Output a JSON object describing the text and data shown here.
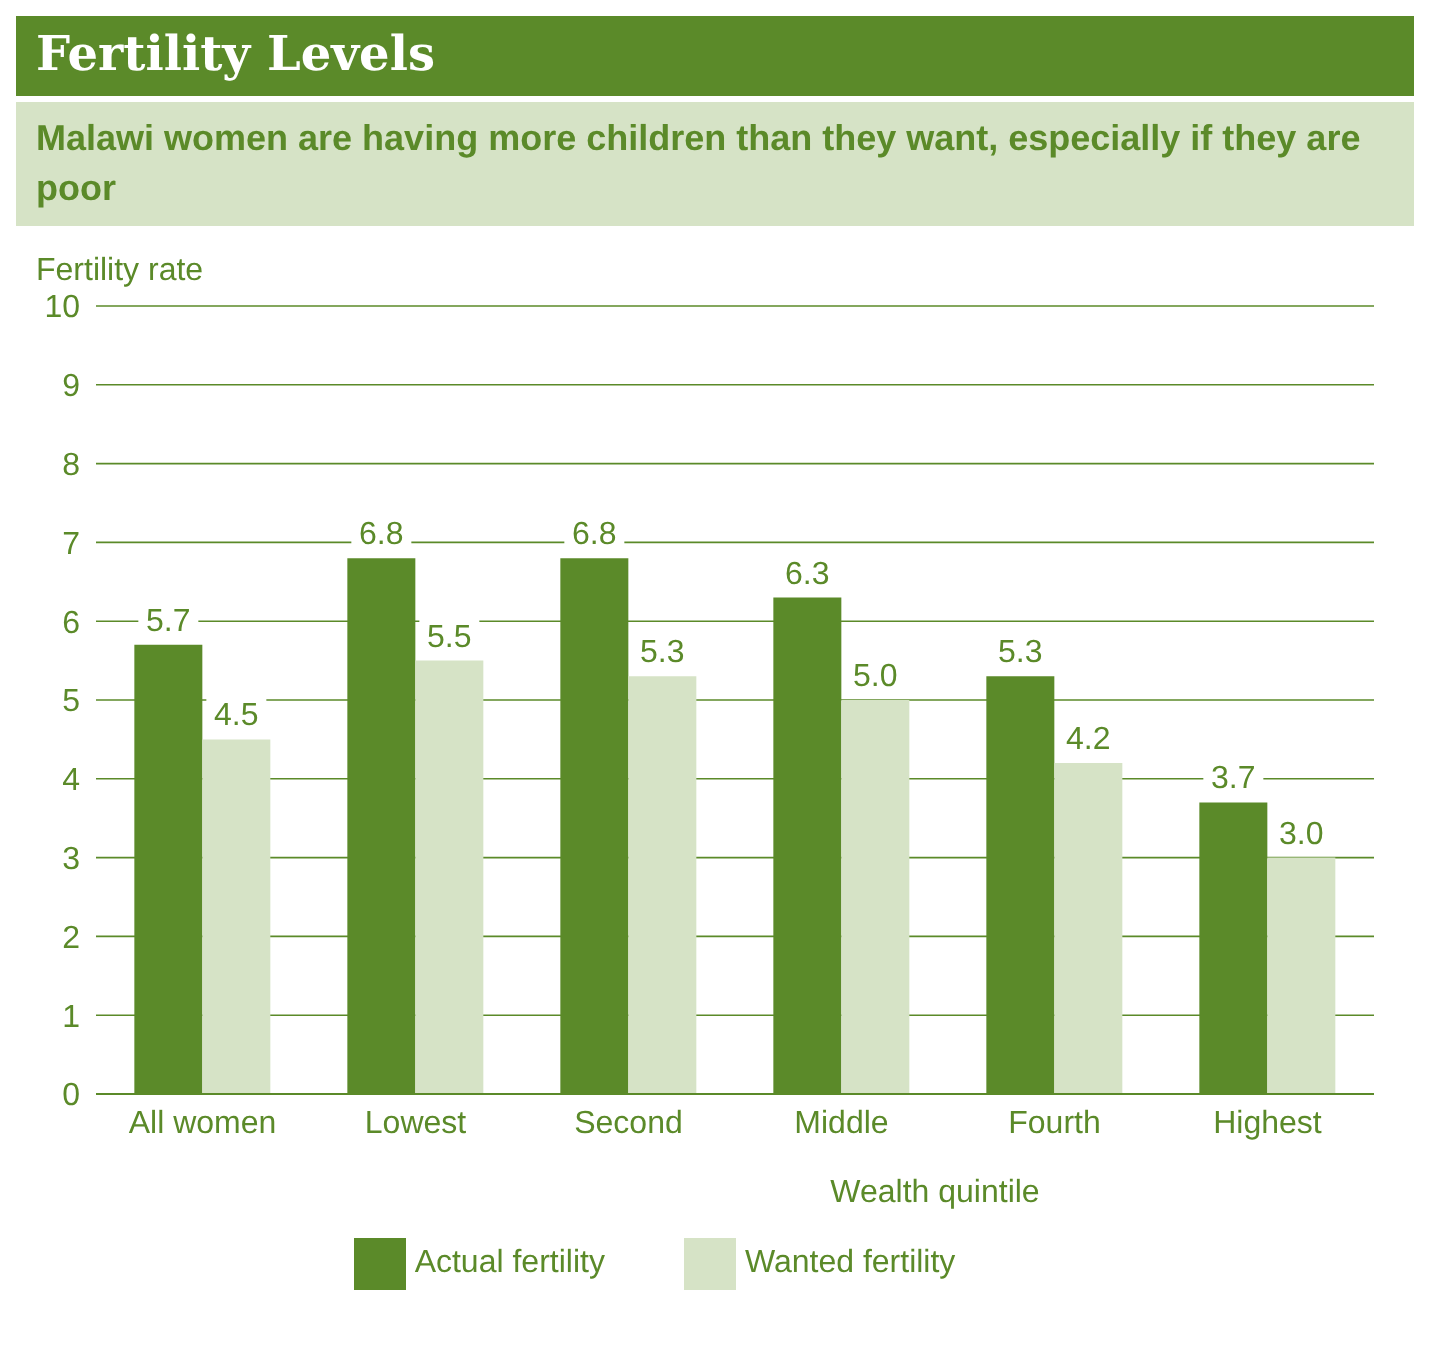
{
  "chart_data": {
    "type": "bar",
    "title": "Fertility Levels",
    "subtitle": "Malawi women are having more children than they want, especially if they are poor",
    "ylabel": "Fertility rate",
    "xlabel": "Wealth quintile",
    "categories": [
      "All women",
      "Lowest",
      "Second",
      "Middle",
      "Fourth",
      "Highest"
    ],
    "series": [
      {
        "name": "Actual fertility",
        "color": "#5b8a29",
        "values": [
          5.7,
          6.8,
          6.8,
          6.3,
          5.3,
          3.7
        ],
        "value_labels": [
          "5.7",
          "6.8",
          "6.8",
          "6.3",
          "5.3",
          "3.7"
        ]
      },
      {
        "name": "Wanted fertility",
        "color": "#d6e3c6",
        "values": [
          4.5,
          5.5,
          5.3,
          5.0,
          4.2,
          3.0
        ],
        "value_labels": [
          "4.5",
          "5.5",
          "5.3",
          "5.0",
          "4.2",
          "3.0"
        ]
      }
    ],
    "ylim": [
      0,
      10
    ],
    "yticks": [
      0,
      1,
      2,
      3,
      4,
      5,
      6,
      7,
      8,
      9,
      10
    ],
    "grid": "y",
    "legend": "bottom"
  }
}
